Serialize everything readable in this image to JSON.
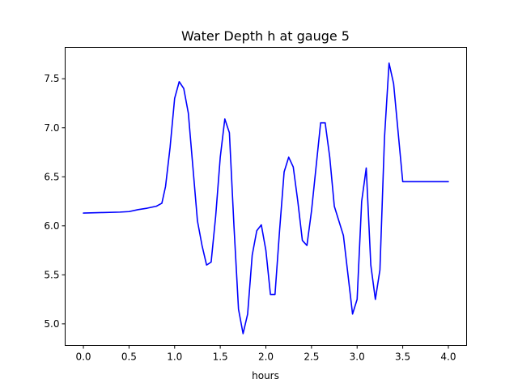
{
  "chart_data": {
    "type": "line",
    "title": "Water Depth h at gauge 5",
    "xlabel": "hours",
    "ylabel": "",
    "xlim": [
      -0.2,
      4.2
    ],
    "ylim": [
      4.78,
      7.82
    ],
    "xticks": [
      0.0,
      0.5,
      1.0,
      1.5,
      2.0,
      2.5,
      3.0,
      3.5,
      4.0
    ],
    "xtick_labels": [
      "0.0",
      "0.5",
      "1.0",
      "1.5",
      "2.0",
      "2.5",
      "3.0",
      "3.5",
      "4.0"
    ],
    "yticks": [
      5.0,
      5.5,
      6.0,
      6.5,
      7.0,
      7.5
    ],
    "ytick_labels": [
      "5.0",
      "5.5",
      "6.0",
      "6.5",
      "7.0",
      "7.5"
    ],
    "grid": false,
    "line_color": "#0000ff",
    "series": [
      {
        "name": "",
        "x": [
          0.0,
          0.2,
          0.4,
          0.5,
          0.6,
          0.7,
          0.8,
          0.86,
          0.9,
          0.95,
          1.0,
          1.05,
          1.1,
          1.15,
          1.2,
          1.25,
          1.3,
          1.35,
          1.4,
          1.45,
          1.5,
          1.55,
          1.6,
          1.65,
          1.7,
          1.75,
          1.8,
          1.85,
          1.9,
          1.95,
          2.0,
          2.05,
          2.1,
          2.15,
          2.2,
          2.25,
          2.3,
          2.35,
          2.4,
          2.45,
          2.5,
          2.55,
          2.6,
          2.65,
          2.7,
          2.75,
          2.8,
          2.85,
          2.9,
          2.95,
          3.0,
          3.05,
          3.1,
          3.15,
          3.2,
          3.25,
          3.3,
          3.35,
          3.4,
          3.45,
          3.5,
          3.55,
          3.6,
          3.65,
          3.7,
          3.75,
          3.8,
          3.85,
          3.9,
          3.95,
          4.0
        ],
        "y": [
          6.13,
          6.135,
          6.14,
          6.145,
          6.165,
          6.18,
          6.2,
          6.23,
          6.4,
          6.8,
          7.3,
          7.47,
          7.4,
          7.15,
          6.6,
          6.05,
          5.8,
          5.6,
          5.63,
          6.1,
          6.7,
          7.09,
          6.95,
          6.0,
          5.15,
          4.9,
          5.1,
          5.7,
          5.95,
          6.01,
          5.75,
          5.3,
          5.3,
          5.95,
          6.55,
          6.7,
          6.6,
          6.25,
          5.85,
          5.8,
          6.15,
          6.6,
          7.05,
          7.05,
          6.7,
          6.2,
          6.05,
          5.9,
          5.5,
          5.1,
          5.25,
          6.25,
          6.59,
          5.6,
          5.25,
          5.55,
          6.9,
          7.66,
          7.45,
          6.95,
          6.45,
          6.45,
          6.45,
          6.45,
          6.45,
          6.45,
          6.45,
          6.45,
          6.45,
          6.45,
          6.45
        ]
      }
    ]
  }
}
